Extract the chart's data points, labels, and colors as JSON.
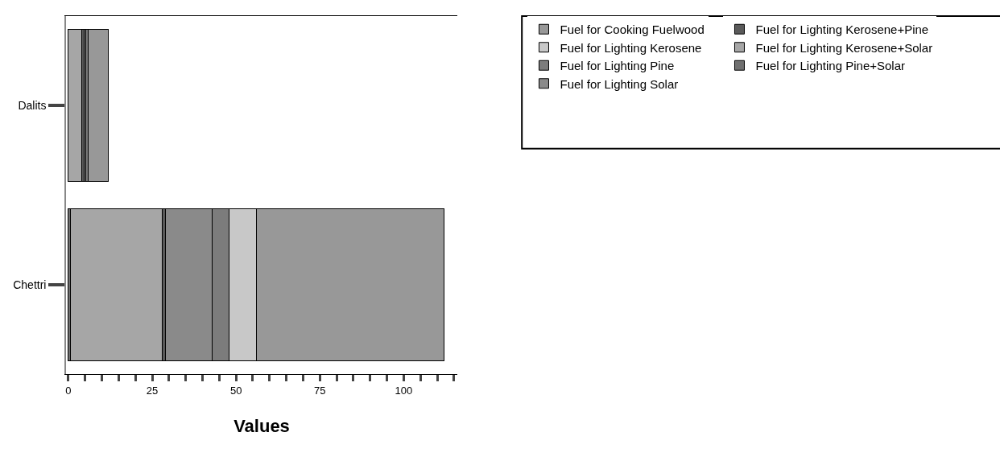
{
  "chart_data": {
    "type": "bar",
    "orientation": "horizontal",
    "stacked": true,
    "xlabel": "Values",
    "categories": [
      "Dalits",
      "Chettri"
    ],
    "series": [
      {
        "name": "Fuel for Lighting Pine+Solar",
        "color": "#707070",
        "values": [
          0,
          0.5
        ]
      },
      {
        "name": "Fuel for Lighting Kerosene+Solar",
        "color": "#a6a6a6",
        "values": [
          4,
          27.5
        ]
      },
      {
        "name": "Fuel for Lighting Kerosene+Pine",
        "color": "#5a5a5a",
        "values": [
          0.6,
          1
        ]
      },
      {
        "name": "Fuel for Lighting Solar",
        "color": "#8a8a8a",
        "values": [
          0.6,
          14
        ]
      },
      {
        "name": "Fuel for Lighting Pine",
        "color": "#7c7c7c",
        "values": [
          0.6,
          5
        ]
      },
      {
        "name": "Fuel for Lighting Kerosene",
        "color": "#c8c8c8",
        "values": [
          0,
          8
        ]
      },
      {
        "name": "Fuel for Cooking Fuelwood",
        "color": "#989898",
        "values": [
          6,
          56
        ]
      }
    ],
    "xlim": [
      -0.7,
      116
    ],
    "xticks": [
      0,
      {
        "value": 5,
        "label": null
      },
      {
        "value": 10,
        "label": null
      },
      {
        "value": 15,
        "label": null
      },
      {
        "value": 20,
        "label": null
      },
      25,
      {
        "value": 30,
        "label": null
      },
      {
        "value": 35,
        "label": null
      },
      {
        "value": 40,
        "label": null
      },
      {
        "value": 45,
        "label": null
      },
      50,
      {
        "value": 55,
        "label": null
      },
      {
        "value": 60,
        "label": null
      },
      {
        "value": 65,
        "label": null
      },
      {
        "value": 70,
        "label": null
      },
      75,
      {
        "value": 80,
        "label": null
      },
      {
        "value": 85,
        "label": null
      },
      {
        "value": 90,
        "label": null
      },
      {
        "value": 95,
        "label": null
      },
      100,
      {
        "value": 105,
        "label": null
      },
      {
        "value": 110,
        "label": null
      },
      {
        "value": 115,
        "label": null
      }
    ],
    "grid": false,
    "legend": "top right"
  }
}
